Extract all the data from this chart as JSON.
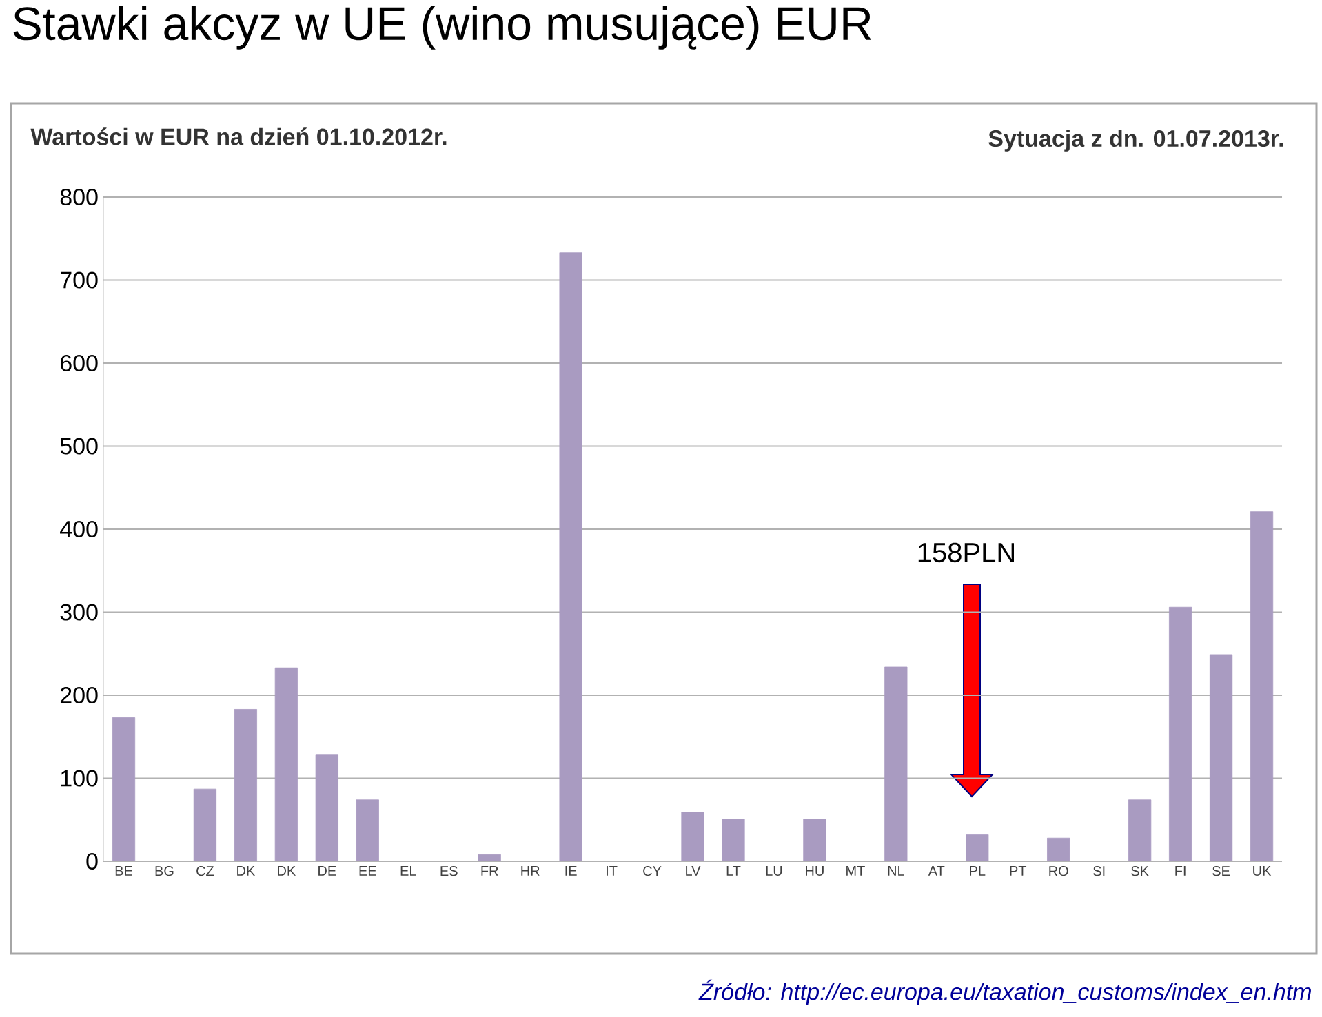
{
  "chart_data": {
    "type": "bar",
    "title": "Stawki akcyz w UE (wino musujące) EUR",
    "categories": [
      "BE",
      "BG",
      "CZ",
      "DK",
      "DK",
      "DE",
      "EE",
      "EL",
      "ES",
      "FR",
      "HR",
      "IE",
      "IT",
      "CY",
      "LV",
      "LT",
      "LU",
      "HU",
      "MT",
      "NL",
      "AT",
      "PL",
      "PT",
      "RO",
      "SI",
      "SK",
      "FI",
      "SE",
      "UK"
    ],
    "values": [
      173,
      0,
      87,
      183,
      233,
      128,
      74,
      0,
      0,
      8,
      0,
      733,
      0,
      0,
      59,
      51,
      0,
      51,
      0,
      234,
      0,
      32,
      0,
      28,
      0,
      74,
      306,
      249,
      421
    ],
    "color": "#a99bc1",
    "ylim": [
      0,
      800
    ],
    "yticks": [
      0,
      100,
      200,
      300,
      400,
      500,
      600,
      700,
      800
    ],
    "grid": "y",
    "annotations": [
      "Wartości w EUR na dzień 01.10.2012r.",
      "Sytuacja z dn. 01.07.2013r.",
      "158PLN",
      "Źródło: http://ec.europa.eu/taxation_customs/index_en.htm"
    ]
  }
}
